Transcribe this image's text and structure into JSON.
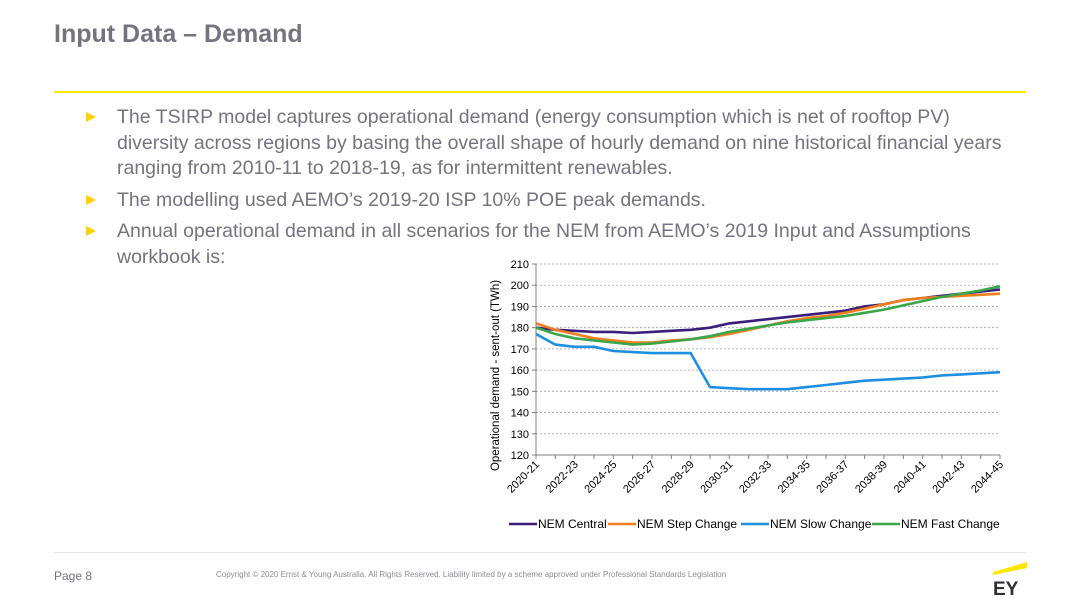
{
  "header": {
    "title": "Input Data – Demand"
  },
  "bullets": [
    "The TSIRP model captures operational demand (energy consumption which is net of rooftop PV) diversity across regions by basing the overall shape of hourly demand on nine historical financial years ranging from 2010-11 to 2018-19, as for intermittent renewables.",
    "The modelling used AEMO’s 2019-20 ISP 10% POE peak demands.",
    "Annual operational demand in all scenarios for the NEM from AEMO’s 2019 Input and Assumptions workbook is:"
  ],
  "footer": {
    "page": "Page 8",
    "copyright": "Copyright © 2020 Ernst & Young Australia. All Rights Reserved. Liability limited by a scheme approved under Professional Standards Legislation",
    "logo_text": "EY"
  },
  "colors": {
    "accent_yellow": "#FFE600",
    "text_grey": "#747480"
  },
  "chart_data": {
    "type": "line",
    "ylabel": "Operational demand - sent-out (TWh)",
    "xlabel": "",
    "ylim": [
      120,
      210
    ],
    "yticks": [
      120,
      130,
      140,
      150,
      160,
      170,
      180,
      190,
      200,
      210
    ],
    "grid": "horizontal dotted",
    "legend_position": "bottom",
    "x": [
      "2020-21",
      "2021-22",
      "2022-23",
      "2023-24",
      "2024-25",
      "2025-26",
      "2026-27",
      "2027-28",
      "2028-29",
      "2029-30",
      "2030-31",
      "2031-32",
      "2032-33",
      "2033-34",
      "2034-35",
      "2035-36",
      "2036-37",
      "2037-38",
      "2038-39",
      "2039-40",
      "2040-41",
      "2041-42",
      "2042-43",
      "2043-44",
      "2044-45"
    ],
    "xtick_labels": [
      "2020-21",
      "2022-23",
      "2024-25",
      "2026-27",
      "2028-29",
      "2030-31",
      "2032-33",
      "2034-35",
      "2036-37",
      "2038-39",
      "2040-41",
      "2042-43",
      "2044-45"
    ],
    "series": [
      {
        "name": "NEM Central",
        "color": "#3B1E7C",
        "values": [
          180,
          179,
          178.5,
          178,
          178,
          177.5,
          178,
          178.5,
          179,
          180,
          182,
          183,
          184,
          185,
          186,
          187,
          188,
          190,
          191,
          193,
          194,
          195,
          196,
          197,
          198
        ]
      },
      {
        "name": "NEM Step Change",
        "color": "#F07E1E",
        "values": [
          182,
          179,
          177,
          175,
          174,
          173,
          173,
          174,
          174.5,
          175.5,
          177,
          179,
          181,
          183,
          184.5,
          185.5,
          187,
          189,
          191,
          193,
          194,
          194.5,
          195,
          195.5,
          196
        ]
      },
      {
        "name": "NEM Slow Change",
        "color": "#1C8FE0",
        "values": [
          177,
          172,
          171,
          171,
          169,
          168.5,
          168,
          168,
          168,
          152,
          151.5,
          151,
          151,
          151,
          152,
          153,
          154,
          155,
          155.5,
          156,
          156.5,
          157.5,
          158,
          158.5,
          159
        ]
      },
      {
        "name": "NEM Fast Change",
        "color": "#3AA64A",
        "values": [
          180,
          177,
          175,
          174,
          173,
          172,
          172.5,
          173.5,
          174.5,
          176,
          178,
          179.5,
          181,
          182.5,
          183.5,
          184.5,
          185.5,
          187,
          188.5,
          190.5,
          192.5,
          194.5,
          196,
          197.5,
          199.5
        ]
      }
    ]
  }
}
